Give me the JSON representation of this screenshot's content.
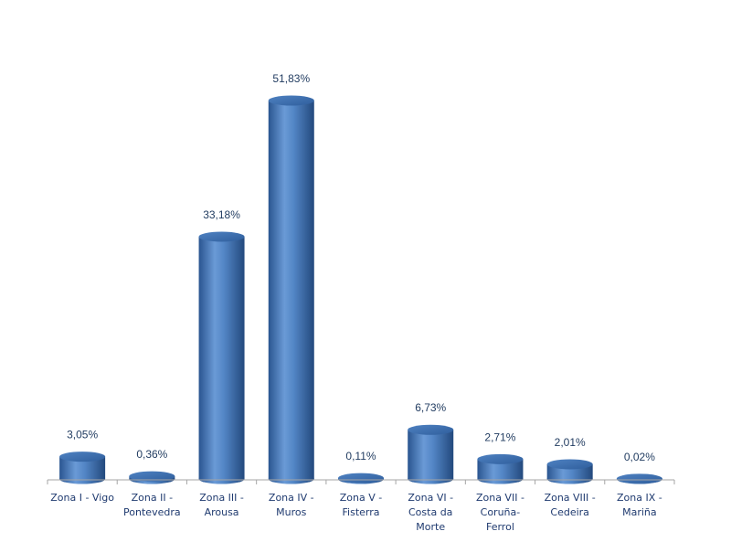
{
  "chart_data": {
    "type": "bar",
    "style": "3d-cylinder",
    "categories": [
      [
        "Zona I - Vigo"
      ],
      [
        "Zona II -",
        "Pontevedra"
      ],
      [
        "Zona III -",
        "Arousa"
      ],
      [
        "Zona IV -",
        "Muros"
      ],
      [
        "Zona V -",
        "Fisterra"
      ],
      [
        "Zona VI -",
        "Costa da",
        "Morte"
      ],
      [
        "Zona VII -",
        "Coruña-",
        "Ferrol"
      ],
      [
        "Zona VIII -",
        "Cedeira"
      ],
      [
        "Zona IX -",
        "Mariña"
      ]
    ],
    "values": [
      3.05,
      0.36,
      33.18,
      51.83,
      0.11,
      6.73,
      2.71,
      2.01,
      0.02
    ],
    "data_labels": [
      "3,05%",
      "0,36%",
      "33,18%",
      "51,83%",
      "0,11%",
      "6,73%",
      "2,71%",
      "2,01%",
      "0,02%"
    ],
    "title": "",
    "xlabel": "",
    "ylabel": "",
    "ylim": [
      0,
      55
    ],
    "grid": false,
    "legend": "none",
    "colors": {
      "bar": "#4a7ebb",
      "bar_dark": "#2a5590",
      "bar_top": "#3d6fae",
      "label": "#1f3a5f",
      "axis": "#a6a6a6"
    }
  }
}
